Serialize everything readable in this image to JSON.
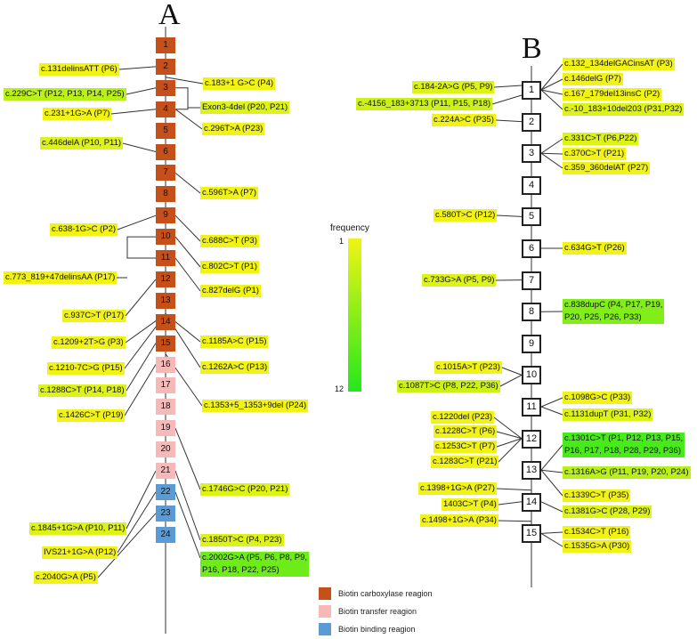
{
  "panel_a": {
    "letter": "A",
    "exons": [
      {
        "n": "1",
        "region": "carboxylase"
      },
      {
        "n": "2",
        "region": "carboxylase"
      },
      {
        "n": "3",
        "region": "carboxylase"
      },
      {
        "n": "4",
        "region": "carboxylase"
      },
      {
        "n": "5",
        "region": "carboxylase"
      },
      {
        "n": "6",
        "region": "carboxylase"
      },
      {
        "n": "7",
        "region": "carboxylase"
      },
      {
        "n": "8",
        "region": "carboxylase"
      },
      {
        "n": "9",
        "region": "carboxylase"
      },
      {
        "n": "10",
        "region": "carboxylase"
      },
      {
        "n": "11",
        "region": "carboxylase"
      },
      {
        "n": "12",
        "region": "carboxylase"
      },
      {
        "n": "13",
        "region": "carboxylase"
      },
      {
        "n": "14",
        "region": "carboxylase"
      },
      {
        "n": "15",
        "region": "carboxylase"
      },
      {
        "n": "16",
        "region": "transfer"
      },
      {
        "n": "17",
        "region": "transfer"
      },
      {
        "n": "18",
        "region": "transfer"
      },
      {
        "n": "19",
        "region": "transfer"
      },
      {
        "n": "20",
        "region": "transfer"
      },
      {
        "n": "21",
        "region": "transfer"
      },
      {
        "n": "22",
        "region": "binding"
      },
      {
        "n": "23",
        "region": "binding"
      },
      {
        "n": "24",
        "region": "binding"
      }
    ],
    "variants_left": [
      {
        "text": "c.131delinsATT (P6)",
        "freq": 1
      },
      {
        "text": "c.229C>T (P12, P13, P14, P25)",
        "freq": 4
      },
      {
        "text": "c.231+1G>A (P7)",
        "freq": 1
      },
      {
        "text": "c.446delA (P10, P11)",
        "freq": 2
      },
      {
        "text": "c.638-1G>C (P2)",
        "freq": 1
      },
      {
        "text": "c.773_819+47delinsAA (P17)",
        "freq": 1
      },
      {
        "text": "c.937C>T (P17)",
        "freq": 1
      },
      {
        "text": "c.1209+2T>G (P3)",
        "freq": 1
      },
      {
        "text": "c.1210-7C>G (P15)",
        "freq": 1
      },
      {
        "text": "c.1288C>T (P14, P18)",
        "freq": 2
      },
      {
        "text": "c.1426C>T (P19)",
        "freq": 1
      },
      {
        "text": "c.1845+1G>A (P10, P11)",
        "freq": 2
      },
      {
        "text": "IVS21+1G>A (P12)",
        "freq": 1
      },
      {
        "text": "c.2040G>A (P5)",
        "freq": 1
      }
    ],
    "variants_right": [
      {
        "text": "c.183+1 G>C (P4)",
        "freq": 1
      },
      {
        "text": "Exon3-4del (P20, P21)",
        "freq": 2
      },
      {
        "text": "c.296T>A (P23)",
        "freq": 1
      },
      {
        "text": "c.596T>A (P7)",
        "freq": 1
      },
      {
        "text": "c.688C>T (P3)",
        "freq": 1
      },
      {
        "text": "c.802C>T (P1)",
        "freq": 1
      },
      {
        "text": "c.827delG (P1)",
        "freq": 1
      },
      {
        "text": "c.1185A>C (P15)",
        "freq": 1
      },
      {
        "text": "c.1262A>C (P13)",
        "freq": 1
      },
      {
        "text": "c.1353+5_1353+9del (P24)",
        "freq": 1
      },
      {
        "text": "c.1746G>C (P20, P21)",
        "freq": 2
      },
      {
        "text": "c.1850T>C (P4, P23)",
        "freq": 2
      },
      {
        "text": "c.2002G>A (P5, P6, P8, P9,\nP16, P18, P22, P25)",
        "freq": 8
      }
    ]
  },
  "panel_b": {
    "letter": "B",
    "exons": [
      "1",
      "2",
      "3",
      "4",
      "5",
      "6",
      "7",
      "8",
      "9",
      "10",
      "11",
      "12",
      "13",
      "14",
      "15"
    ],
    "variants_left": [
      {
        "text": "c.184-2A>G (P5, P9)",
        "freq": 2
      },
      {
        "text": "c.-4156_183+3713 (P11, P15, P18)",
        "freq": 3
      },
      {
        "text": "c.224A>C (P35)",
        "freq": 1
      },
      {
        "text": "c.580T>C (P12)",
        "freq": 1
      },
      {
        "text": "c.733G>A  (P5, P9)",
        "freq": 2
      },
      {
        "text": "c.1015A>T (P23)",
        "freq": 1
      },
      {
        "text": "c.1087T>C (P8, P22, P36)",
        "freq": 3
      },
      {
        "text": "c.1220del (P23)",
        "freq": 1
      },
      {
        "text": "c.1228C>T (P6)",
        "freq": 1
      },
      {
        "text": "c.1253C>T (P7)",
        "freq": 1
      },
      {
        "text": "c.1283C>T (P21)",
        "freq": 1
      },
      {
        "text": "c.1398+1G>A (P27)",
        "freq": 1
      },
      {
        "text": "1403C>T (P4)",
        "freq": 1
      },
      {
        "text": "c.1498+1G>A (P34)",
        "freq": 1
      }
    ],
    "variants_right": [
      {
        "text": "c.132_134delGACinsAT (P3)",
        "freq": 1
      },
      {
        "text": "c.146delG (P7)",
        "freq": 1
      },
      {
        "text": "c.167_179del13insC (P2)",
        "freq": 1
      },
      {
        "text": "c.-10_183+10del203 (P31,P32)",
        "freq": 2
      },
      {
        "text": "c.331C>T (P6,P22)",
        "freq": 2
      },
      {
        "text": "c.370C>T (P21)",
        "freq": 1
      },
      {
        "text": "c.359_360delAT (P27)",
        "freq": 1
      },
      {
        "text": "c.634G>T (P26)",
        "freq": 1
      },
      {
        "text": "c.838dupC (P4, P17, P19,\nP20, P25, P26, P33)",
        "freq": 7
      },
      {
        "text": "c.1098G>C (P33)",
        "freq": 1
      },
      {
        "text": "c.1131dupT (P31, P32)",
        "freq": 2
      },
      {
        "text": "c.1301C>T (P1, P12, P13, P15,\nP16, P17, P18, P28, P29, P36)",
        "freq": 10
      },
      {
        "text": "c.1316A>G (P11, P19, P20, P24)",
        "freq": 4
      },
      {
        "text": "c.1339C>T (P35)",
        "freq": 1
      },
      {
        "text": "c.1381G>C (P28, P29)",
        "freq": 2
      },
      {
        "text": "c.1534C>T (P16)",
        "freq": 1
      },
      {
        "text": "c.1535G>A (P30)",
        "freq": 1
      }
    ]
  },
  "frequency_scale": {
    "title": "frequency",
    "min_label": "1",
    "max_label": "12",
    "color_low": "#f0f315",
    "color_high": "#24e81c"
  },
  "legend": [
    {
      "label": "Biotin carboxylase reagion",
      "color": "#c5501a"
    },
    {
      "label": "Biotin transfer reagion",
      "color": "#f7b8b8"
    },
    {
      "label": "Biotin binding reagion",
      "color": "#5b9bd5"
    }
  ]
}
